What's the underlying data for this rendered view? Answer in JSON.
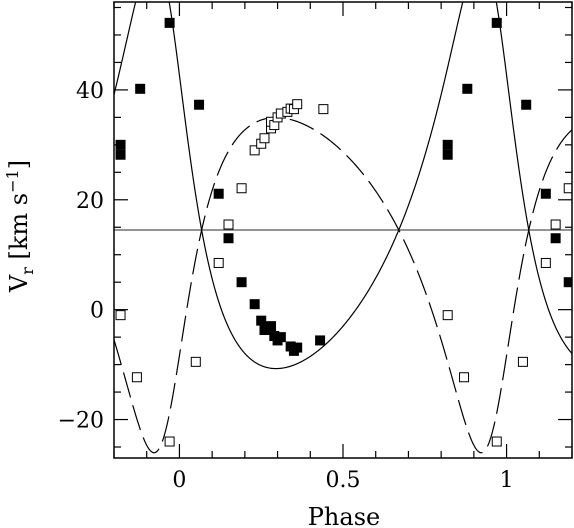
{
  "chart_data": {
    "type": "scatter",
    "xlabel": "Phase",
    "ylabel": {
      "main": "V",
      "sub": "r",
      "unit_open": " [km s",
      "unit_sup": "−1",
      "unit_close": "]"
    },
    "xlim": [
      -0.2,
      1.2
    ],
    "ylim": [
      -27,
      56
    ],
    "x_ticks": [
      {
        "value": 0,
        "label": "0"
      },
      {
        "value": 0.5,
        "label": "0.5"
      },
      {
        "value": 1,
        "label": "1"
      }
    ],
    "y_ticks": [
      {
        "value": -20,
        "label": "−20"
      },
      {
        "value": 0,
        "label": "0"
      },
      {
        "value": 20,
        "label": "20"
      },
      {
        "value": 40,
        "label": "40"
      }
    ],
    "x_minor_step": 0.1,
    "y_minor_step": 5,
    "systemic_velocity": 14.5,
    "primary_fit": {
      "gamma": 14.5,
      "K": 37.6,
      "e": 0.38,
      "omega_deg": 30,
      "t0": 0.958,
      "line": "solid"
    },
    "secondary_fit": {
      "gamma": 14.5,
      "K": 30.5,
      "e": 0.38,
      "omega_deg": 210,
      "t0": 0.958,
      "line": "dashed"
    },
    "series": [
      {
        "marker": "filled-square",
        "points": [
          [
            -0.18,
            30.0
          ],
          [
            -0.18,
            28.2
          ],
          [
            -0.12,
            40.2
          ],
          [
            -0.03,
            52.2
          ],
          [
            0.06,
            37.3
          ],
          [
            0.12,
            21.1
          ],
          [
            0.15,
            13.0
          ],
          [
            0.19,
            5.0
          ],
          [
            0.23,
            1.0
          ],
          [
            0.25,
            -2.0
          ],
          [
            0.26,
            -3.7
          ],
          [
            0.28,
            -3.0
          ],
          [
            0.29,
            -4.8
          ],
          [
            0.3,
            -5.6
          ],
          [
            0.31,
            -5.0
          ],
          [
            0.34,
            -6.7
          ],
          [
            0.35,
            -7.5
          ],
          [
            0.36,
            -6.9
          ],
          [
            0.43,
            -5.6
          ],
          [
            0.82,
            30.0
          ],
          [
            0.82,
            28.2
          ],
          [
            0.88,
            40.2
          ],
          [
            0.97,
            52.2
          ],
          [
            1.06,
            37.3
          ],
          [
            1.12,
            21.1
          ],
          [
            1.15,
            13.0
          ],
          [
            1.19,
            5.0
          ]
        ]
      },
      {
        "marker": "open-square",
        "points": [
          [
            -0.18,
            -1.0
          ],
          [
            -0.13,
            -12.3
          ],
          [
            -0.03,
            -24.0
          ],
          [
            0.05,
            -9.5
          ],
          [
            0.12,
            8.5
          ],
          [
            0.15,
            15.5
          ],
          [
            0.19,
            22.1
          ],
          [
            0.23,
            29.0
          ],
          [
            0.25,
            30.2
          ],
          [
            0.26,
            31.2
          ],
          [
            0.28,
            33.0
          ],
          [
            0.28,
            34.2
          ],
          [
            0.29,
            33.6
          ],
          [
            0.3,
            35.0
          ],
          [
            0.31,
            35.7
          ],
          [
            0.33,
            36.0
          ],
          [
            0.34,
            36.6
          ],
          [
            0.35,
            36.5
          ],
          [
            0.36,
            37.4
          ],
          [
            0.44,
            36.5
          ],
          [
            0.82,
            -1.0
          ],
          [
            0.87,
            -12.3
          ],
          [
            0.97,
            -24.0
          ],
          [
            1.05,
            -9.5
          ],
          [
            1.12,
            8.5
          ],
          [
            1.15,
            15.5
          ],
          [
            1.19,
            22.1
          ]
        ]
      }
    ]
  }
}
